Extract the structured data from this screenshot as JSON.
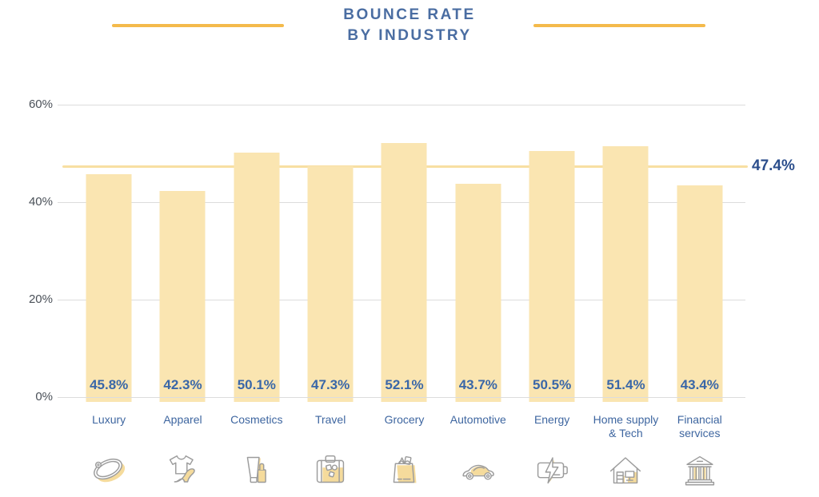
{
  "title": {
    "line1": "BOUNCE RATE",
    "line2": "BY INDUSTRY"
  },
  "colors": {
    "title_text": "#4A6DA2",
    "decoration_line": "#F4BA4B",
    "bar_fill": "#FAE5B1",
    "average_line": "#F8DFA2",
    "value_label": "#3A67A8",
    "category_label": "#3E66A0",
    "average_label": "#2B4E8C",
    "axis_label": "#4A5058",
    "gridline": "#DCDCDC",
    "icon_stroke": "#9C9C9C",
    "icon_accent": "#F5DB9C"
  },
  "chart_data": {
    "type": "bar",
    "title": "BOUNCE RATE BY INDUSTRY",
    "categories": [
      "Luxury",
      "Apparel",
      "Cosmetics",
      "Travel",
      "Grocery",
      "Automotive",
      "Energy",
      "Home supply & Tech",
      "Financial services"
    ],
    "values": [
      45.8,
      42.3,
      50.1,
      47.3,
      52.1,
      43.7,
      50.5,
      51.4,
      43.4
    ],
    "value_labels": [
      "45.8%",
      "42.3%",
      "50.1%",
      "47.3%",
      "52.1%",
      "43.7%",
      "50.5%",
      "51.4%",
      "43.4%"
    ],
    "icons": [
      "ring-icon",
      "apparel-icon",
      "cosmetics-icon",
      "suitcase-icon",
      "grocery-bag-icon",
      "car-icon",
      "battery-icon",
      "home-icon",
      "bank-icon"
    ],
    "average_line": {
      "value": 47.4,
      "label": "47.4%"
    },
    "ylim": [
      0,
      60
    ],
    "yticks": [
      0,
      20,
      40,
      60
    ],
    "ytick_labels": [
      "0%",
      "20%",
      "40%",
      "60%"
    ],
    "grid": true,
    "legend": false
  }
}
